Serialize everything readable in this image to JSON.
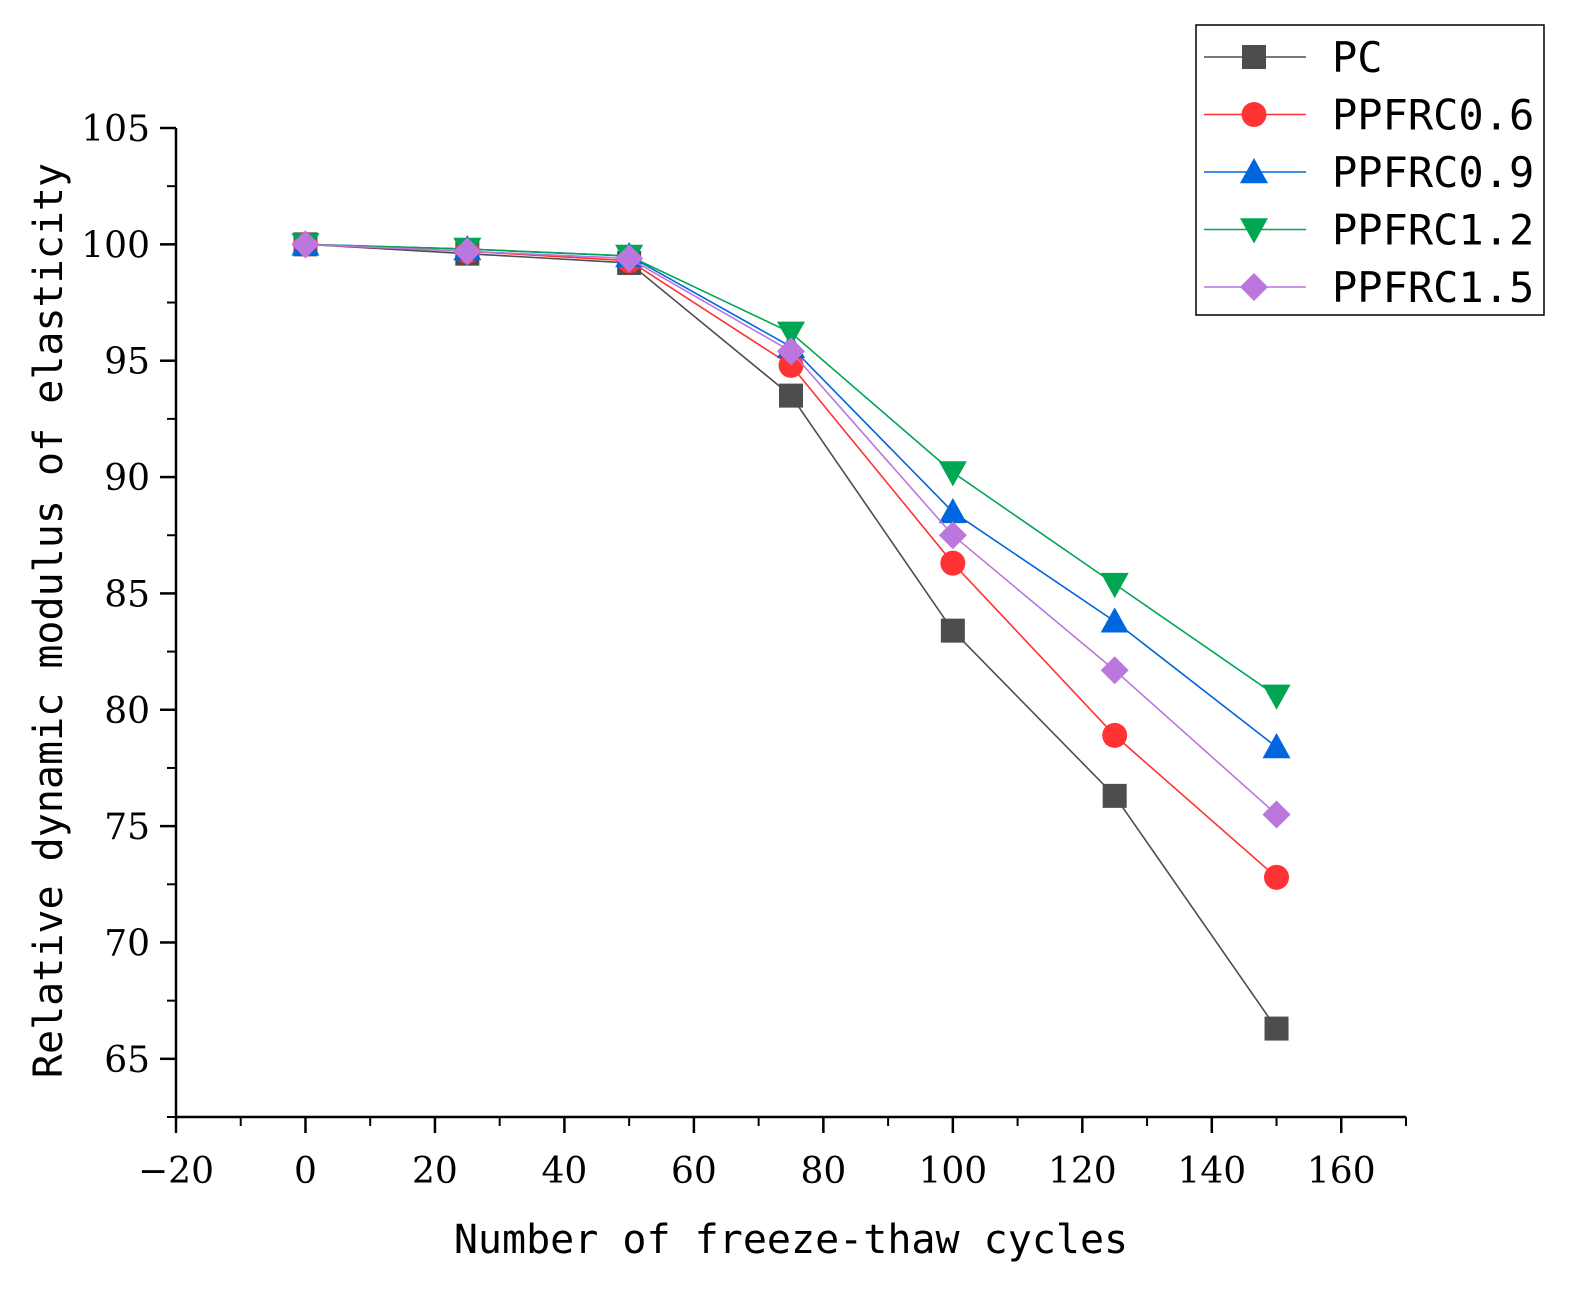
{
  "chart_data": {
    "type": "line",
    "xlabel": "Number of freeze-thaw cycles",
    "ylabel": "Relative dynamic modulus of elasticity",
    "xlim": [
      -20,
      170
    ],
    "ylim": [
      62.5,
      105
    ],
    "x_ticks": [
      -20,
      0,
      20,
      40,
      60,
      80,
      100,
      120,
      140,
      160
    ],
    "y_ticks": [
      65,
      70,
      75,
      80,
      85,
      90,
      95,
      100,
      105
    ],
    "x_tick_labels": [
      "−20",
      "0",
      "20",
      "40",
      "60",
      "80",
      "100",
      "120",
      "140",
      "160"
    ],
    "y_tick_labels": [
      "65",
      "70",
      "75",
      "80",
      "85",
      "90",
      "95",
      "100",
      "105"
    ],
    "grid": false,
    "legend_position": "top-right",
    "x": [
      0,
      25,
      50,
      75,
      100,
      125,
      150
    ],
    "series": [
      {
        "name": "PC",
        "color": "#4d4d4d",
        "marker": "square",
        "values": [
          100,
          99.6,
          99.2,
          93.5,
          83.4,
          76.3,
          66.3
        ]
      },
      {
        "name": "PPFRC0.6",
        "color": "#ff3333",
        "marker": "circle",
        "values": [
          100,
          99.7,
          99.3,
          94.8,
          86.3,
          78.9,
          72.8
        ]
      },
      {
        "name": "PPFRC0.9",
        "color": "#0066dd",
        "marker": "triangle-up",
        "values": [
          100,
          99.8,
          99.5,
          95.6,
          88.5,
          83.8,
          78.4
        ]
      },
      {
        "name": "PPFRC1.2",
        "color": "#00a651",
        "marker": "triangle-down",
        "values": [
          100,
          99.8,
          99.5,
          96.2,
          90.2,
          85.4,
          80.6
        ]
      },
      {
        "name": "PPFRC1.5",
        "color": "#bb77dd",
        "marker": "diamond",
        "values": [
          100,
          99.7,
          99.4,
          95.4,
          87.5,
          81.7,
          75.5
        ]
      }
    ]
  }
}
